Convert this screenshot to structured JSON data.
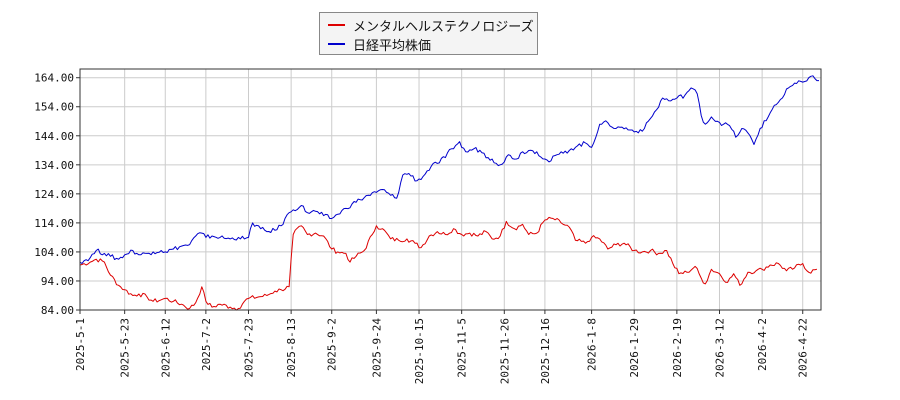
{
  "chart_data": {
    "type": "line",
    "title": "",
    "xlabel": "",
    "ylabel": "",
    "ylim": [
      84.0,
      167.0
    ],
    "y_ticks": [
      "84.00",
      "94.00",
      "104.00",
      "114.00",
      "124.00",
      "134.00",
      "144.00",
      "154.00",
      "164.00"
    ],
    "x_range": [
      "2025-05-01",
      "2026-05-01"
    ],
    "x_ticks": [
      "2025-5-1",
      "2025-5-23",
      "2025-6-12",
      "2025-7-2",
      "2025-7-23",
      "2025-8-13",
      "2025-9-2",
      "2025-9-24",
      "2025-10-15",
      "2025-11-5",
      "2025-11-26",
      "2025-12-16",
      "2026-1-8",
      "2026-1-29",
      "2026-2-19",
      "2026-3-12",
      "2026-4-2",
      "2026-4-22"
    ],
    "grid": true,
    "legend_position": "top-center",
    "series": [
      {
        "name": "メンタルヘルステクノロジーズ",
        "color": "#dd0000",
        "points": [
          [
            "2025-05-01",
            99.5
          ],
          [
            "2025-05-06",
            100.5
          ],
          [
            "2025-05-09",
            101.5
          ],
          [
            "2025-05-13",
            100.5
          ],
          [
            "2025-05-16",
            96.0
          ],
          [
            "2025-05-20",
            92.5
          ],
          [
            "2025-05-23",
            91.0
          ],
          [
            "2025-05-27",
            89.0
          ],
          [
            "2025-05-30",
            89.5
          ],
          [
            "2025-06-03",
            88.5
          ],
          [
            "2025-06-06",
            87.0
          ],
          [
            "2025-06-10",
            87.5
          ],
          [
            "2025-06-12",
            88.0
          ],
          [
            "2025-06-16",
            87.0
          ],
          [
            "2025-06-20",
            86.0
          ],
          [
            "2025-06-24",
            84.5
          ],
          [
            "2025-06-27",
            86.5
          ],
          [
            "2025-06-30",
            92.0
          ],
          [
            "2025-07-02",
            87.0
          ],
          [
            "2025-07-05",
            85.0
          ],
          [
            "2025-07-09",
            86.0
          ],
          [
            "2025-07-14",
            85.0
          ],
          [
            "2025-07-18",
            84.5
          ],
          [
            "2025-07-21",
            87.0
          ],
          [
            "2025-07-23",
            88.0
          ],
          [
            "2025-07-28",
            88.5
          ],
          [
            "2025-08-01",
            89.0
          ],
          [
            "2025-08-05",
            90.5
          ],
          [
            "2025-08-08",
            91.0
          ],
          [
            "2025-08-12",
            92.0
          ],
          [
            "2025-08-14",
            110.0
          ],
          [
            "2025-08-18",
            113.0
          ],
          [
            "2025-08-21",
            110.0
          ],
          [
            "2025-08-25",
            110.5
          ],
          [
            "2025-08-29",
            109.5
          ],
          [
            "2025-09-02",
            105.0
          ],
          [
            "2025-09-05",
            104.0
          ],
          [
            "2025-09-09",
            103.5
          ],
          [
            "2025-09-11",
            100.5
          ],
          [
            "2025-09-14",
            102.5
          ],
          [
            "2025-09-18",
            104.5
          ],
          [
            "2025-09-22",
            110.0
          ],
          [
            "2025-09-24",
            113.0
          ],
          [
            "2025-09-27",
            112.0
          ],
          [
            "2025-10-01",
            108.5
          ],
          [
            "2025-10-05",
            108.0
          ],
          [
            "2025-10-09",
            108.5
          ],
          [
            "2025-10-13",
            107.0
          ],
          [
            "2025-10-16",
            105.5
          ],
          [
            "2025-10-20",
            109.5
          ],
          [
            "2025-10-24",
            111.0
          ],
          [
            "2025-10-28",
            110.0
          ],
          [
            "2025-11-01",
            112.0
          ],
          [
            "2025-11-05",
            110.0
          ],
          [
            "2025-11-09",
            110.5
          ],
          [
            "2025-11-13",
            109.5
          ],
          [
            "2025-11-17",
            111.0
          ],
          [
            "2025-11-20",
            108.5
          ],
          [
            "2025-11-24",
            109.5
          ],
          [
            "2025-11-27",
            114.5
          ],
          [
            "2025-12-01",
            112.0
          ],
          [
            "2025-12-05",
            113.5
          ],
          [
            "2025-12-08",
            110.0
          ],
          [
            "2025-12-12",
            110.5
          ],
          [
            "2025-12-16",
            115.0
          ],
          [
            "2025-12-20",
            115.5
          ],
          [
            "2025-12-24",
            114.0
          ],
          [
            "2025-12-28",
            112.5
          ],
          [
            "2025-12-31",
            108.0
          ],
          [
            "2026-01-05",
            107.0
          ],
          [
            "2026-01-08",
            109.0
          ],
          [
            "2026-01-12",
            108.5
          ],
          [
            "2026-01-16",
            105.0
          ],
          [
            "2026-01-20",
            106.5
          ],
          [
            "2026-01-24",
            107.0
          ],
          [
            "2026-01-29",
            104.5
          ],
          [
            "2026-02-02",
            104.0
          ],
          [
            "2026-02-06",
            104.5
          ],
          [
            "2026-02-10",
            103.5
          ],
          [
            "2026-02-14",
            104.5
          ],
          [
            "2026-02-17",
            100.0
          ],
          [
            "2026-02-20",
            96.5
          ],
          [
            "2026-02-24",
            97.0
          ],
          [
            "2026-02-28",
            99.0
          ],
          [
            "2026-03-03",
            95.0
          ],
          [
            "2026-03-05",
            93.0
          ],
          [
            "2026-03-08",
            98.0
          ],
          [
            "2026-03-12",
            96.5
          ],
          [
            "2026-03-16",
            93.5
          ],
          [
            "2026-03-19",
            96.5
          ],
          [
            "2026-03-22",
            92.5
          ],
          [
            "2026-03-26",
            97.0
          ],
          [
            "2026-03-30",
            97.5
          ],
          [
            "2026-04-02",
            98.0
          ],
          [
            "2026-04-06",
            99.5
          ],
          [
            "2026-04-10",
            100.0
          ],
          [
            "2026-04-14",
            97.5
          ],
          [
            "2026-04-18",
            98.5
          ],
          [
            "2026-04-22",
            100.0
          ],
          [
            "2026-04-25",
            97.0
          ],
          [
            "2026-04-29",
            98.0
          ]
        ]
      },
      {
        "name": "日経平均株価",
        "color": "#0000cc",
        "points": [
          [
            "2025-05-01",
            100.5
          ],
          [
            "2025-05-06",
            102.0
          ],
          [
            "2025-05-09",
            104.5
          ],
          [
            "2025-05-13",
            103.5
          ],
          [
            "2025-05-16",
            102.5
          ],
          [
            "2025-05-20",
            101.5
          ],
          [
            "2025-05-23",
            103.0
          ],
          [
            "2025-05-27",
            104.5
          ],
          [
            "2025-05-30",
            103.0
          ],
          [
            "2025-06-03",
            103.5
          ],
          [
            "2025-06-06",
            104.0
          ],
          [
            "2025-06-10",
            104.5
          ],
          [
            "2025-06-12",
            104.0
          ],
          [
            "2025-06-16",
            105.0
          ],
          [
            "2025-06-20",
            106.0
          ],
          [
            "2025-06-24",
            106.5
          ],
          [
            "2025-06-27",
            109.5
          ],
          [
            "2025-06-30",
            110.5
          ],
          [
            "2025-07-02",
            109.0
          ],
          [
            "2025-07-05",
            109.5
          ],
          [
            "2025-07-09",
            109.0
          ],
          [
            "2025-07-14",
            108.5
          ],
          [
            "2025-07-18",
            109.0
          ],
          [
            "2025-07-21",
            108.5
          ],
          [
            "2025-07-23",
            109.0
          ],
          [
            "2025-07-25",
            114.0
          ],
          [
            "2025-07-29",
            112.0
          ],
          [
            "2025-08-01",
            111.0
          ],
          [
            "2025-08-05",
            111.5
          ],
          [
            "2025-08-08",
            113.0
          ],
          [
            "2025-08-12",
            117.5
          ],
          [
            "2025-08-14",
            118.5
          ],
          [
            "2025-08-18",
            120.0
          ],
          [
            "2025-08-21",
            117.5
          ],
          [
            "2025-08-25",
            118.0
          ],
          [
            "2025-08-29",
            116.5
          ],
          [
            "2025-09-02",
            115.5
          ],
          [
            "2025-09-05",
            117.0
          ],
          [
            "2025-09-09",
            119.0
          ],
          [
            "2025-09-12",
            120.5
          ],
          [
            "2025-09-16",
            122.0
          ],
          [
            "2025-09-20",
            123.5
          ],
          [
            "2025-09-24",
            124.5
          ],
          [
            "2025-09-27",
            125.5
          ],
          [
            "2025-10-01",
            123.5
          ],
          [
            "2025-10-04",
            122.5
          ],
          [
            "2025-10-07",
            130.5
          ],
          [
            "2025-10-10",
            131.0
          ],
          [
            "2025-10-14",
            128.5
          ],
          [
            "2025-10-17",
            130.0
          ],
          [
            "2025-10-21",
            133.5
          ],
          [
            "2025-10-24",
            134.5
          ],
          [
            "2025-10-28",
            136.5
          ],
          [
            "2025-10-31",
            139.5
          ],
          [
            "2025-11-04",
            142.0
          ],
          [
            "2025-11-05",
            140.0
          ],
          [
            "2025-11-07",
            138.5
          ],
          [
            "2025-11-11",
            139.5
          ],
          [
            "2025-11-14",
            139.0
          ],
          [
            "2025-11-18",
            136.5
          ],
          [
            "2025-11-20",
            136.0
          ],
          [
            "2025-11-24",
            134.0
          ],
          [
            "2025-11-26",
            135.0
          ],
          [
            "2025-11-28",
            137.5
          ],
          [
            "2025-12-02",
            136.0
          ],
          [
            "2025-12-05",
            138.5
          ],
          [
            "2025-12-09",
            139.0
          ],
          [
            "2025-12-12",
            138.5
          ],
          [
            "2025-12-16",
            136.0
          ],
          [
            "2025-12-18",
            135.0
          ],
          [
            "2025-12-22",
            137.5
          ],
          [
            "2025-12-25",
            138.0
          ],
          [
            "2025-12-29",
            139.5
          ],
          [
            "2026-01-01",
            140.5
          ],
          [
            "2026-01-05",
            141.5
          ],
          [
            "2026-01-08",
            140.0
          ],
          [
            "2026-01-12",
            148.0
          ],
          [
            "2026-01-16",
            148.5
          ],
          [
            "2026-01-20",
            146.5
          ],
          [
            "2026-01-23",
            147.0
          ],
          [
            "2026-01-27",
            146.0
          ],
          [
            "2026-01-30",
            145.5
          ],
          [
            "2026-02-03",
            146.5
          ],
          [
            "2026-02-06",
            150.0
          ],
          [
            "2026-02-09",
            153.0
          ],
          [
            "2026-02-12",
            157.0
          ],
          [
            "2026-02-16",
            156.0
          ],
          [
            "2026-02-19",
            157.0
          ],
          [
            "2026-02-23",
            158.0
          ],
          [
            "2026-02-26",
            160.5
          ],
          [
            "2026-03-01",
            158.5
          ],
          [
            "2026-03-03",
            151.0
          ],
          [
            "2026-03-05",
            148.0
          ],
          [
            "2026-03-08",
            150.5
          ],
          [
            "2026-03-11",
            149.0
          ],
          [
            "2026-03-14",
            148.0
          ],
          [
            "2026-03-17",
            147.5
          ],
          [
            "2026-03-20",
            143.5
          ],
          [
            "2026-03-23",
            146.5
          ],
          [
            "2026-03-26",
            145.0
          ],
          [
            "2026-03-29",
            141.0
          ],
          [
            "2026-04-01",
            146.5
          ],
          [
            "2026-04-05",
            150.5
          ],
          [
            "2026-04-08",
            154.5
          ],
          [
            "2026-04-12",
            157.0
          ],
          [
            "2026-04-15",
            160.5
          ],
          [
            "2026-04-19",
            162.0
          ],
          [
            "2026-04-22",
            162.5
          ],
          [
            "2026-04-26",
            164.5
          ],
          [
            "2026-04-30",
            163.0
          ]
        ]
      }
    ]
  }
}
